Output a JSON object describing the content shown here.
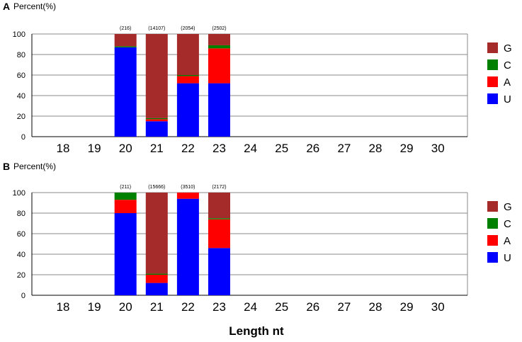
{
  "colors": {
    "G": "#a52a2a",
    "C": "#008000",
    "A": "#ff0000",
    "U": "#0000ff"
  },
  "x_axis_label": "Length nt",
  "chart_data": [
    {
      "type": "bar",
      "stacked": true,
      "panel_label": "A",
      "ylabel": "Percent(%)",
      "ylim": [
        0,
        100
      ],
      "yticks": [
        "0",
        "20",
        "40",
        "60",
        "80",
        "100"
      ],
      "grid": true,
      "legend_position": "right",
      "legend_entries": [
        "G",
        "C",
        "A",
        "U"
      ],
      "categories": [
        "18",
        "19",
        "20",
        "21",
        "22",
        "23",
        "24",
        "25",
        "26",
        "27",
        "28",
        "29",
        "30"
      ],
      "counts": [
        "",
        "",
        "(216)",
        "(14107)",
        "(2054)",
        "(2502)",
        "",
        "",
        "",
        "",
        "",
        "",
        ""
      ],
      "series": [
        {
          "name": "U",
          "values": [
            0,
            0,
            87,
            15,
            52,
            52,
            0,
            0,
            0,
            0,
            0,
            0,
            0
          ]
        },
        {
          "name": "A",
          "values": [
            0,
            0,
            0,
            2,
            7,
            34,
            0,
            0,
            0,
            0,
            0,
            0,
            0
          ]
        },
        {
          "name": "C",
          "values": [
            0,
            0,
            1,
            1,
            1,
            3,
            0,
            0,
            0,
            0,
            0,
            0,
            0
          ]
        },
        {
          "name": "G",
          "values": [
            0,
            0,
            12,
            82,
            40,
            11,
            0,
            0,
            0,
            0,
            0,
            0,
            0
          ]
        }
      ]
    },
    {
      "type": "bar",
      "stacked": true,
      "panel_label": "B",
      "ylabel": "Percent(%)",
      "ylim": [
        0,
        100
      ],
      "yticks": [
        "0",
        "20",
        "40",
        "60",
        "80",
        "100"
      ],
      "grid": true,
      "legend_position": "right",
      "legend_entries": [
        "G",
        "C",
        "A",
        "U"
      ],
      "categories": [
        "18",
        "19",
        "20",
        "21",
        "22",
        "23",
        "24",
        "25",
        "26",
        "27",
        "28",
        "29",
        "30"
      ],
      "counts": [
        "",
        "",
        "(211)",
        "(15666)",
        "(3510)",
        "(2172)",
        "",
        "",
        "",
        "",
        "",
        "",
        ""
      ],
      "series": [
        {
          "name": "U",
          "values": [
            0,
            0,
            80,
            12,
            94,
            46,
            0,
            0,
            0,
            0,
            0,
            0,
            0
          ]
        },
        {
          "name": "A",
          "values": [
            0,
            0,
            13,
            8,
            6,
            28,
            0,
            0,
            0,
            0,
            0,
            0,
            0
          ]
        },
        {
          "name": "C",
          "values": [
            0,
            0,
            7,
            1,
            0,
            1,
            0,
            0,
            0,
            0,
            0,
            0,
            0
          ]
        },
        {
          "name": "G",
          "values": [
            0,
            0,
            0,
            79,
            0,
            25,
            0,
            0,
            0,
            0,
            0,
            0,
            0
          ]
        }
      ]
    }
  ]
}
